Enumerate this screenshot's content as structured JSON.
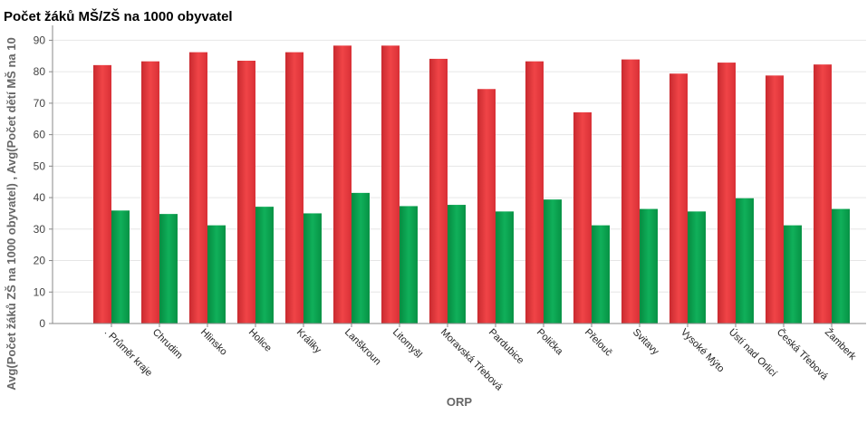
{
  "chart_data": {
    "type": "bar",
    "title": "Počet žáků MŠ/ZŠ na 1000 obyvatel",
    "xlabel": "ORP",
    "ylabel": "Avg(Počet žáků ZŠ na 1000 obyvatel) , Avg(Počet dětí MŠ na 10",
    "ylim": [
      0,
      93
    ],
    "yticks": [
      0,
      10,
      20,
      30,
      40,
      50,
      60,
      70,
      80,
      90
    ],
    "grid": true,
    "categories": [
      ". Průměr kraje",
      "Chrudim",
      "Hlinsko",
      "Holice",
      "Králiky",
      "Lanškroun",
      "Litomyšl",
      "Moravská Třebová",
      "Pardubice",
      "Polička",
      "Přelouč",
      "Svitavy",
      "Vysoké Mýto",
      "Ústí nad Orlicí",
      "Česká Třebová",
      "Žamberk"
    ],
    "series": [
      {
        "values": [
          82.1,
          83.3,
          86.2,
          83.5,
          86.2,
          88.3,
          88.3,
          84.1,
          74.5,
          83.3,
          67.1,
          83.9,
          79.4,
          82.9,
          78.8,
          82.3
        ]
      },
      {
        "values": [
          35.9,
          34.8,
          31.2,
          37.1,
          35.0,
          41.5,
          37.3,
          37.7,
          35.6,
          39.4,
          31.2,
          36.4,
          35.6,
          39.8,
          31.2,
          36.4
        ]
      }
    ],
    "colors": [
      "#e8383d",
      "#0aa050"
    ]
  }
}
